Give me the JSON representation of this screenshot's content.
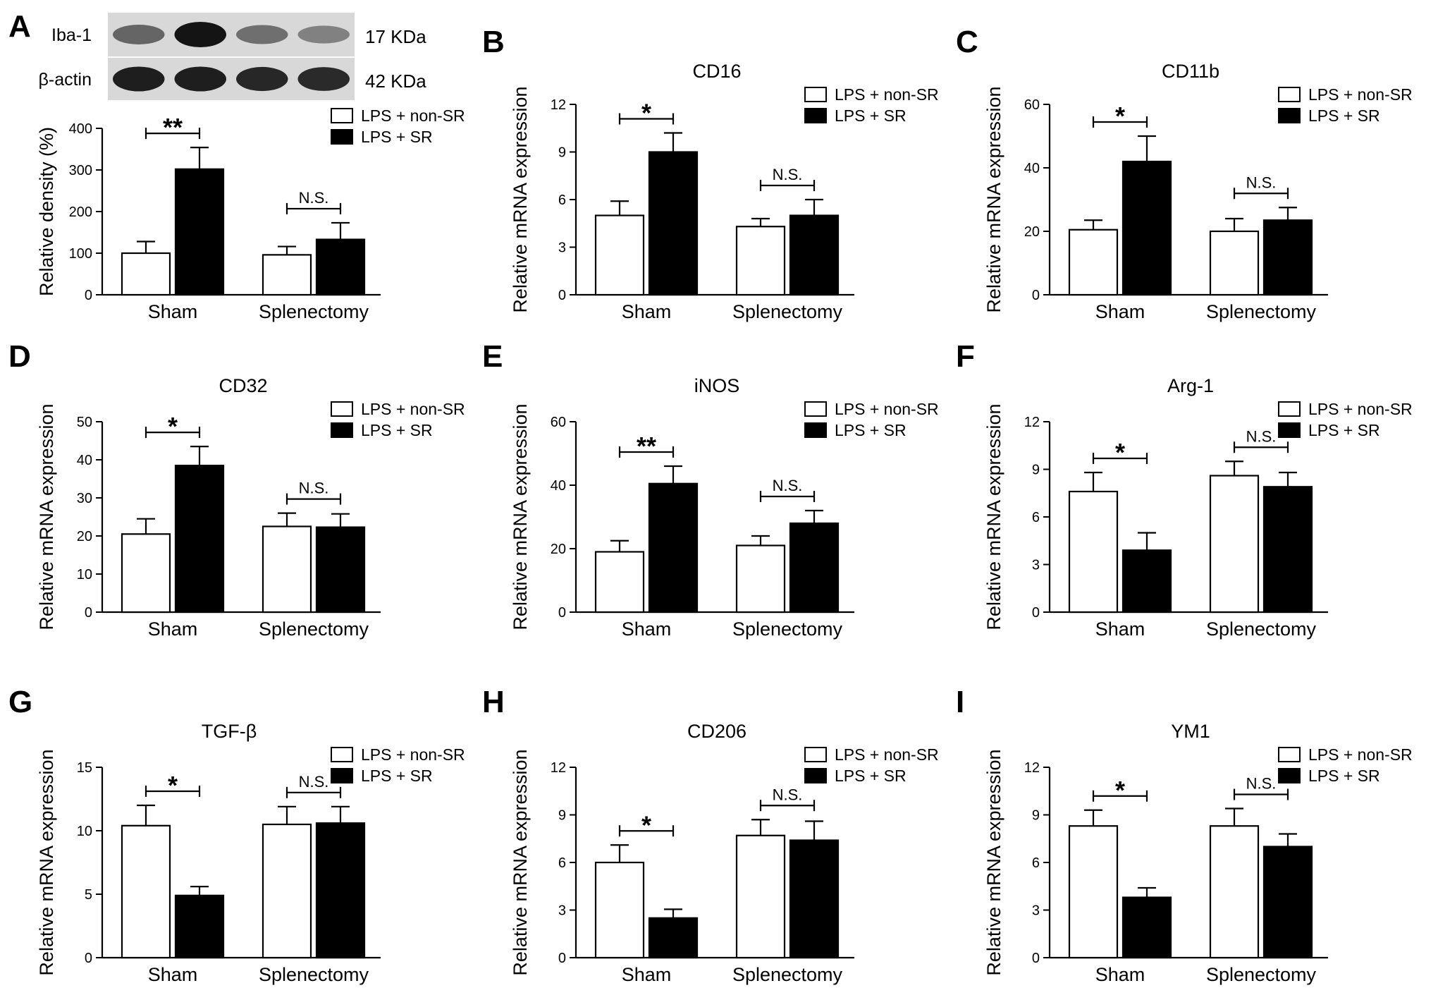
{
  "legend": {
    "non_sr": "LPS + non-SR",
    "sr": "LPS + SR"
  },
  "colors": {
    "non_sr_fill": "#ffffff",
    "sr_fill": "#000000",
    "stroke": "#000000"
  },
  "western_blot": {
    "bands": [
      {
        "label": "Iba-1",
        "size": "17 KDa",
        "intensities": [
          0.55,
          1.0,
          0.5,
          0.4
        ]
      },
      {
        "label": "β-actin",
        "size": "42 KDa",
        "intensities": [
          0.95,
          0.95,
          0.9,
          0.88
        ]
      }
    ]
  },
  "chart_data": [
    {
      "panel": "A",
      "type": "bar",
      "title": "",
      "ylabel": "Relative density (%)",
      "categories": [
        "Sham",
        "Splenectomy"
      ],
      "ylim": [
        0,
        400
      ],
      "yticks": [
        0,
        100,
        200,
        300,
        400
      ],
      "series": [
        {
          "name": "LPS + non-SR",
          "values": [
            100,
            96
          ],
          "errors": [
            28,
            20
          ]
        },
        {
          "name": "LPS + SR",
          "values": [
            302,
            133
          ],
          "errors": [
            52,
            40
          ]
        }
      ],
      "significance": [
        "**",
        "N.S."
      ],
      "legend_position": "top-right"
    },
    {
      "panel": "B",
      "type": "bar",
      "title": "CD16",
      "ylabel": "Relative mRNA expression",
      "categories": [
        "Sham",
        "Splenectomy"
      ],
      "ylim": [
        0,
        12
      ],
      "yticks": [
        0,
        3,
        6,
        9,
        12
      ],
      "series": [
        {
          "name": "LPS + non-SR",
          "values": [
            5.0,
            4.3
          ],
          "errors": [
            0.9,
            0.5
          ]
        },
        {
          "name": "LPS + SR",
          "values": [
            9.0,
            5.0
          ],
          "errors": [
            1.2,
            1.0
          ]
        }
      ],
      "significance": [
        "*",
        "N.S."
      ],
      "legend_position": "top-right"
    },
    {
      "panel": "C",
      "type": "bar",
      "title": "CD11b",
      "ylabel": "Relative mRNA expression",
      "categories": [
        "Sham",
        "Splenectomy"
      ],
      "ylim": [
        0,
        60
      ],
      "yticks": [
        0,
        20,
        40,
        60
      ],
      "series": [
        {
          "name": "LPS + non-SR",
          "values": [
            20.5,
            20
          ],
          "errors": [
            3,
            4
          ]
        },
        {
          "name": "LPS + SR",
          "values": [
            42,
            23.5
          ],
          "errors": [
            8,
            4
          ]
        }
      ],
      "significance": [
        "*",
        "N.S."
      ],
      "legend_position": "top-right"
    },
    {
      "panel": "D",
      "type": "bar",
      "title": "CD32",
      "ylabel": "Relative mRNA expression",
      "categories": [
        "Sham",
        "Splenectomy"
      ],
      "ylim": [
        0,
        50
      ],
      "yticks": [
        0,
        10,
        20,
        30,
        40,
        50
      ],
      "series": [
        {
          "name": "LPS + non-SR",
          "values": [
            20.5,
            22.5
          ],
          "errors": [
            4,
            3.5
          ]
        },
        {
          "name": "LPS + SR",
          "values": [
            38.5,
            22.3
          ],
          "errors": [
            5,
            3.5
          ]
        }
      ],
      "significance": [
        "*",
        "N.S."
      ],
      "legend_position": "top-right"
    },
    {
      "panel": "E",
      "type": "bar",
      "title": "iNOS",
      "ylabel": "Relative mRNA expression",
      "categories": [
        "Sham",
        "Splenectomy"
      ],
      "ylim": [
        0,
        60
      ],
      "yticks": [
        0,
        20,
        40,
        60
      ],
      "series": [
        {
          "name": "LPS + non-SR",
          "values": [
            19,
            21
          ],
          "errors": [
            3.5,
            3
          ]
        },
        {
          "name": "LPS + SR",
          "values": [
            40.5,
            28
          ],
          "errors": [
            5.5,
            4
          ]
        }
      ],
      "significance": [
        "**",
        "N.S."
      ],
      "legend_position": "top-right"
    },
    {
      "panel": "F",
      "type": "bar",
      "title": "Arg-1",
      "ylabel": "Relative mRNA expression",
      "categories": [
        "Sham",
        "Splenectomy"
      ],
      "ylim": [
        0,
        12
      ],
      "yticks": [
        0,
        3,
        6,
        9,
        12
      ],
      "series": [
        {
          "name": "LPS + non-SR",
          "values": [
            7.6,
            8.6
          ],
          "errors": [
            1.2,
            0.9
          ]
        },
        {
          "name": "LPS + SR",
          "values": [
            3.9,
            7.9
          ],
          "errors": [
            1.1,
            0.9
          ]
        }
      ],
      "significance": [
        "*",
        "N.S."
      ],
      "legend_position": "top-right"
    },
    {
      "panel": "G",
      "type": "bar",
      "title": "TGF-β",
      "ylabel": "Relative mRNA expression",
      "categories": [
        "Sham",
        "Splenectomy"
      ],
      "ylim": [
        0,
        15
      ],
      "yticks": [
        0,
        5,
        10,
        15
      ],
      "series": [
        {
          "name": "LPS + non-SR",
          "values": [
            10.4,
            10.5
          ],
          "errors": [
            1.6,
            1.4
          ]
        },
        {
          "name": "LPS + SR",
          "values": [
            4.9,
            10.6
          ],
          "errors": [
            0.7,
            1.3
          ]
        }
      ],
      "significance": [
        "*",
        "N.S."
      ],
      "legend_position": "top-right"
    },
    {
      "panel": "H",
      "type": "bar",
      "title": "CD206",
      "ylabel": "Relative mRNA expression",
      "categories": [
        "Sham",
        "Splenectomy"
      ],
      "ylim": [
        0,
        12
      ],
      "yticks": [
        0,
        3,
        6,
        9,
        12
      ],
      "series": [
        {
          "name": "LPS + non-SR",
          "values": [
            6.0,
            7.7
          ],
          "errors": [
            1.1,
            1.0
          ]
        },
        {
          "name": "LPS + SR",
          "values": [
            2.5,
            7.4
          ],
          "errors": [
            0.55,
            1.2
          ]
        }
      ],
      "significance": [
        "*",
        "N.S."
      ],
      "legend_position": "top-right"
    },
    {
      "panel": "I",
      "type": "bar",
      "title": "YM1",
      "ylabel": "Relative mRNA expression",
      "categories": [
        "Sham",
        "Splenectomy"
      ],
      "ylim": [
        0,
        12
      ],
      "yticks": [
        0,
        3,
        6,
        9,
        12
      ],
      "series": [
        {
          "name": "LPS + non-SR",
          "values": [
            8.3,
            8.3
          ],
          "errors": [
            1.0,
            1.1
          ]
        },
        {
          "name": "LPS + SR",
          "values": [
            3.8,
            7.0
          ],
          "errors": [
            0.6,
            0.8
          ]
        }
      ],
      "significance": [
        "*",
        "N.S."
      ],
      "legend_position": "top-right"
    }
  ]
}
